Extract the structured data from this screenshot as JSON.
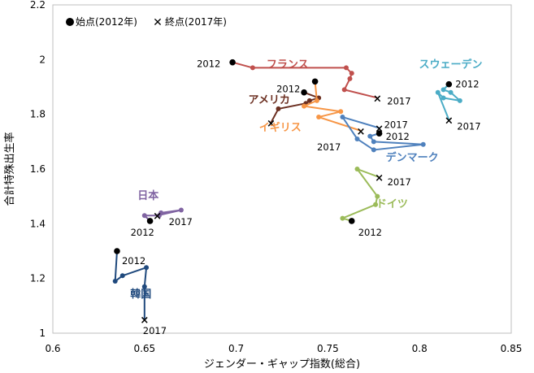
{
  "chart_data": {
    "type": "scatter",
    "xlabel": "ジェンダー・ギャップ指数(総合)",
    "ylabel": "合計特殊出生率",
    "xlim": [
      0.6,
      0.85
    ],
    "ylim": [
      1.0,
      2.2
    ],
    "x_ticks": [
      "0.6",
      "0.65",
      "0.7",
      "0.75",
      "0.8",
      "0.85"
    ],
    "y_ticks": [
      "1",
      "1.2",
      "1.4",
      "1.6",
      "1.8",
      "2",
      "2.2"
    ],
    "legend": {
      "start": "始点(2012年)",
      "end": "終点(2017年)",
      "placement": "top-left"
    },
    "series": [
      {
        "name": "フランス",
        "color": "#c0504d",
        "points": [
          [
            0.698,
            1.99
          ],
          [
            0.709,
            1.97
          ],
          [
            0.76,
            1.97
          ],
          [
            0.763,
            1.95
          ],
          [
            0.762,
            1.93
          ],
          [
            0.759,
            1.89
          ],
          [
            0.777,
            1.86
          ]
        ],
        "start_label": "2012",
        "end_label": "2017"
      },
      {
        "name": "スウェーデン",
        "color": "#4bacc6",
        "points": [
          [
            0.816,
            1.91
          ],
          [
            0.813,
            1.89
          ],
          [
            0.817,
            1.88
          ],
          [
            0.822,
            1.85
          ],
          [
            0.813,
            1.86
          ],
          [
            0.81,
            1.88
          ],
          [
            0.816,
            1.78
          ]
        ],
        "start_label": "2012",
        "end_label": "2017"
      },
      {
        "name": "アメリカ",
        "color": "#6b2f21",
        "points": [
          [
            0.737,
            1.88
          ],
          [
            0.745,
            1.86
          ],
          [
            0.74,
            1.85
          ],
          [
            0.738,
            1.84
          ],
          [
            0.723,
            1.82
          ],
          [
            0.719,
            1.77
          ]
        ],
        "start_label": "2012",
        "end_label": ""
      },
      {
        "name": "イギリス",
        "color": "#f79646",
        "points": [
          [
            0.743,
            1.92
          ],
          [
            0.744,
            1.85
          ],
          [
            0.737,
            1.83
          ],
          [
            0.757,
            1.81
          ],
          [
            0.745,
            1.79
          ],
          [
            0.768,
            1.74
          ]
        ],
        "start_label": "",
        "end_label": "2017"
      },
      {
        "name": "デンマーク",
        "color": "#4f81bd",
        "points": [
          [
            0.778,
            1.73
          ],
          [
            0.773,
            1.72
          ],
          [
            0.775,
            1.7
          ],
          [
            0.802,
            1.69
          ],
          [
            0.775,
            1.67
          ],
          [
            0.766,
            1.71
          ],
          [
            0.758,
            1.79
          ],
          [
            0.778,
            1.75
          ]
        ],
        "start_label": "2012",
        "end_label": "2017"
      },
      {
        "name": "ドイツ",
        "color": "#9bbb59",
        "points": [
          [
            0.763,
            1.41
          ],
          [
            0.758,
            1.42
          ],
          [
            0.776,
            1.47
          ],
          [
            0.777,
            1.5
          ],
          [
            0.766,
            1.6
          ],
          [
            0.778,
            1.57
          ]
        ],
        "start_label": "2012",
        "end_label": "2017"
      },
      {
        "name": "日本",
        "color": "#8064a2",
        "points": [
          [
            0.653,
            1.41
          ],
          [
            0.65,
            1.43
          ],
          [
            0.658,
            1.43
          ],
          [
            0.659,
            1.44
          ],
          [
            0.67,
            1.45
          ],
          [
            0.657,
            1.43
          ]
        ],
        "start_label": "2012",
        "end_label": "2017"
      },
      {
        "name": "韓国",
        "color": "#1f497d",
        "points": [
          [
            0.635,
            1.3
          ],
          [
            0.634,
            1.19
          ],
          [
            0.638,
            1.21
          ],
          [
            0.651,
            1.24
          ],
          [
            0.65,
            1.17
          ],
          [
            0.65,
            1.05
          ]
        ],
        "start_label": "2012",
        "end_label": "2017"
      }
    ]
  }
}
